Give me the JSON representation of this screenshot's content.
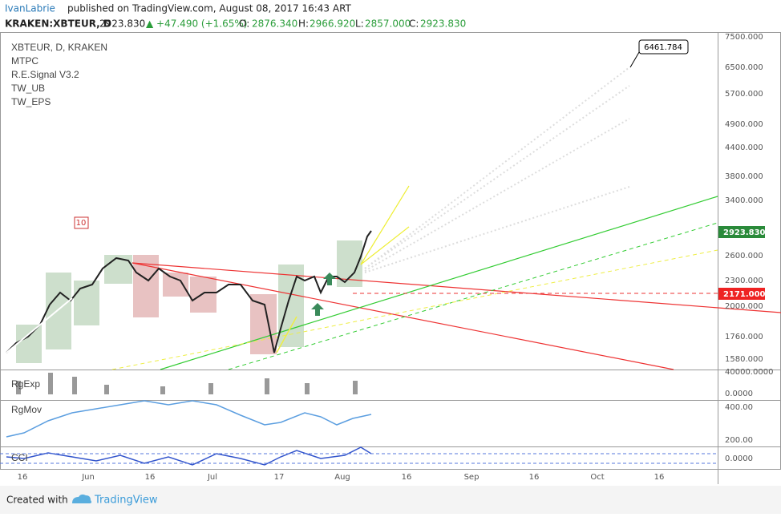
{
  "header": {
    "author": "IvanLabrie",
    "published": "published on TradingView.com, August 08, 2017 16:43 ART",
    "symbol": "KRAKEN:XBTEUR, D",
    "last": "2923.830",
    "change": "▲ +47.490 (+1.65%)",
    "open_label": "O:",
    "open": "2876.340",
    "high_label": "H:",
    "high": "2966.920",
    "low_label": "L:",
    "low": "2857.000",
    "close_label": "C:",
    "close": "2923.830"
  },
  "legend": [
    "XBTEUR, D, KRAKEN",
    "MTPC",
    "R.E.Signal V3.2",
    "TW_UB",
    "TW_EPS"
  ],
  "price_axis": [
    "7500.000",
    "6500.000",
    "5700.000",
    "4900.000",
    "4400.000",
    "3800.000",
    "3400.000",
    "2600.000",
    "2300.000",
    "2000.000",
    "1760.000",
    "1580.000"
  ],
  "price_labels": {
    "last": "2923.830",
    "level": "2171.000",
    "target": "6461.784",
    "marker": "10"
  },
  "panes": [
    {
      "name": "RgExp",
      "ticks": [
        "40000.0000",
        "0.0000"
      ]
    },
    {
      "name": "RgMov",
      "ticks": [
        "400.00",
        "200.00"
      ]
    },
    {
      "name": "CCI",
      "ticks": [
        "0.0000"
      ]
    }
  ],
  "date_axis": [
    "16",
    "Jun",
    "16",
    "Jul",
    "17",
    "Aug",
    "16",
    "Sep",
    "16",
    "Oct",
    "16"
  ],
  "footer": {
    "created": "Created with",
    "brand": "TradingView"
  }
}
